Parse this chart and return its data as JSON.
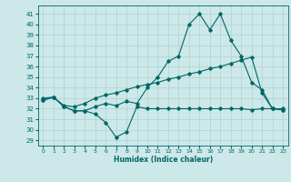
{
  "title": "",
  "xlabel": "Humidex (Indice chaleur)",
  "bg_color": "#cce8e8",
  "line_color": "#006666",
  "grid_color": "#b0d0d0",
  "xlim": [
    -0.5,
    23.5
  ],
  "ylim": [
    28.5,
    41.8
  ],
  "yticks": [
    29,
    30,
    31,
    32,
    33,
    34,
    35,
    36,
    37,
    38,
    39,
    40,
    41
  ],
  "xticks": [
    0,
    1,
    2,
    3,
    4,
    5,
    6,
    7,
    8,
    9,
    10,
    11,
    12,
    13,
    14,
    15,
    16,
    17,
    18,
    19,
    20,
    21,
    22,
    23
  ],
  "line1_x": [
    0,
    1,
    2,
    3,
    4,
    5,
    6,
    7,
    8,
    9,
    10,
    11,
    12,
    13,
    14,
    15,
    16,
    17,
    18,
    19,
    20,
    21,
    22,
    23
  ],
  "line1_y": [
    32.8,
    33.1,
    32.2,
    31.8,
    31.8,
    31.5,
    30.7,
    29.3,
    29.8,
    32.2,
    32.0,
    32.0,
    32.0,
    32.0,
    32.0,
    32.0,
    32.0,
    32.0,
    32.0,
    32.0,
    31.9,
    32.0,
    32.0,
    31.9
  ],
  "line2_x": [
    0,
    1,
    2,
    3,
    4,
    5,
    6,
    7,
    8,
    9,
    10,
    11,
    12,
    13,
    14,
    15,
    16,
    17,
    18,
    19,
    20,
    21,
    22,
    23
  ],
  "line2_y": [
    33.0,
    33.1,
    32.3,
    32.2,
    32.5,
    33.0,
    33.3,
    33.5,
    33.8,
    34.1,
    34.3,
    34.5,
    34.8,
    35.0,
    35.3,
    35.5,
    35.8,
    36.0,
    36.3,
    36.6,
    36.9,
    33.5,
    32.0,
    32.0
  ],
  "line3_x": [
    0,
    1,
    2,
    3,
    4,
    5,
    6,
    7,
    8,
    9,
    10,
    11,
    12,
    13,
    14,
    15,
    16,
    17,
    18,
    19,
    20,
    21,
    22,
    23
  ],
  "line3_y": [
    32.8,
    33.1,
    32.2,
    31.8,
    31.8,
    32.2,
    32.5,
    32.3,
    32.7,
    32.5,
    34.0,
    35.0,
    36.5,
    37.0,
    40.0,
    41.0,
    39.5,
    41.0,
    38.5,
    37.0,
    34.5,
    33.8,
    32.0,
    31.9
  ]
}
